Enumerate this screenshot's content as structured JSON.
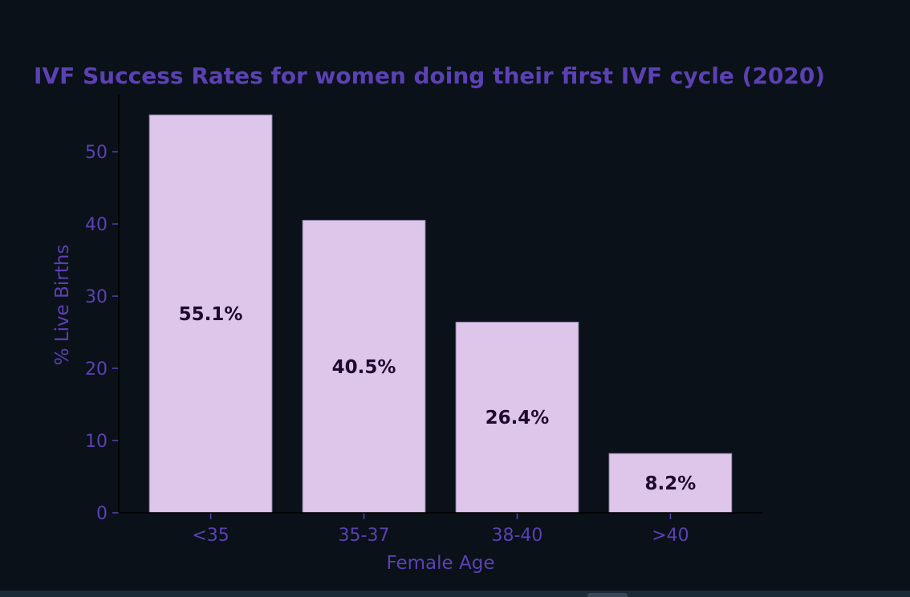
{
  "chart_data": {
    "type": "bar",
    "title": "IVF Success Rates for women doing their first IVF cycle (2020)",
    "xlabel": "Female Age",
    "ylabel": "% Live Births",
    "categories": [
      "<35",
      "35-37",
      "38-40",
      ">40"
    ],
    "values": [
      55.1,
      40.5,
      26.4,
      8.2
    ],
    "data_labels": [
      "55.1%",
      "40.5%",
      "26.4%",
      "8.2%"
    ],
    "yticks": [
      0,
      10,
      20,
      30,
      40,
      50
    ],
    "ytick_labels": [
      "0",
      "10",
      "20",
      "30",
      "40",
      "50"
    ],
    "ylim": [
      0,
      57.9
    ],
    "grid": false,
    "legend": "none",
    "colors": {
      "background": "#0a1119",
      "bar": "#dec5ea",
      "bar_edge": "#8e86a8",
      "text": "#5b41b3",
      "data_label": "#1e0a30",
      "axis": "#000000"
    }
  }
}
